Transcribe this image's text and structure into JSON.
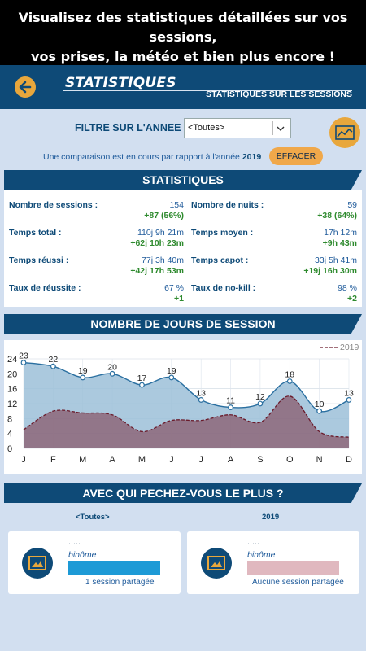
{
  "promo": {
    "line1": "Visualisez des statistiques détaillées sur vos sessions,",
    "line2": "vos prises, la météo et bien plus encore !"
  },
  "header": {
    "title": "STATISTIQUES",
    "subtitle": "STATISTIQUES SUR LES SESSIONS"
  },
  "filter": {
    "label": "FILTRE SUR L'ANNEE",
    "selected": "<Toutes>"
  },
  "comparison": {
    "text": "Une comparaison est en cours par rapport à l'année",
    "year": "2019",
    "clear_label": "EFFACER"
  },
  "stats_section": {
    "title": "STATISTIQUES",
    "items": [
      {
        "label": "Nombre de sessions :",
        "value": "154",
        "diff": "+87 (56%)"
      },
      {
        "label": "Nombre de nuits :",
        "value": "59",
        "diff": "+38 (64%)"
      },
      {
        "label": "Temps total :",
        "value": "110j 9h 21m",
        "diff": "+62j 10h 23m"
      },
      {
        "label": "Temps moyen :",
        "value": "17h 12m",
        "diff": "+9h 43m"
      },
      {
        "label": "Temps réussi :",
        "value": "77j 3h 40m",
        "diff": "+42j 17h 53m"
      },
      {
        "label": "Temps capot :",
        "value": "33j 5h 41m",
        "diff": "+19j 16h 30m"
      },
      {
        "label": "Taux de réussite :",
        "value": "67 %",
        "diff": "+1"
      },
      {
        "label": "Taux de no-kill :",
        "value": "98 %",
        "diff": "+2"
      }
    ]
  },
  "days_section": {
    "title": "NOMBRE DE JOURS DE SESSION"
  },
  "chart_data": {
    "type": "area",
    "categories": [
      "J",
      "F",
      "M",
      "A",
      "M",
      "J",
      "J",
      "A",
      "S",
      "O",
      "N",
      "D"
    ],
    "series": [
      {
        "name": "",
        "values": [
          23,
          22,
          19,
          20,
          17,
          19,
          13,
          11,
          12,
          18,
          10,
          13
        ],
        "color": "#6a9fc4"
      },
      {
        "name": "2019",
        "values": [
          5,
          10,
          9.5,
          9,
          4.5,
          7.5,
          7.5,
          9,
          7,
          14,
          4.5,
          3
        ],
        "color": "#7a3a4a",
        "style": "dashed"
      }
    ],
    "data_labels": [
      "23",
      "22",
      "19",
      "20",
      "17",
      "19",
      "13",
      "11",
      "12",
      "18",
      "10",
      "13"
    ],
    "yticks": [
      "0",
      "4",
      "8",
      "12",
      "16",
      "20",
      "24"
    ],
    "ylim": [
      0,
      24
    ],
    "legend": "top-right",
    "grid": true
  },
  "who_section": {
    "title": "AVEC QUI PECHEZ-VOUS LE PLUS ?",
    "left": {
      "column_label": "<Toutes>",
      "role": "binôme",
      "shared": "1 session partagée",
      "bar_color": "#1d9ad6"
    },
    "right": {
      "column_label": "2019",
      "role": "binôme",
      "shared": "Aucune session partagée",
      "bar_color": "#e0b8bf"
    }
  }
}
